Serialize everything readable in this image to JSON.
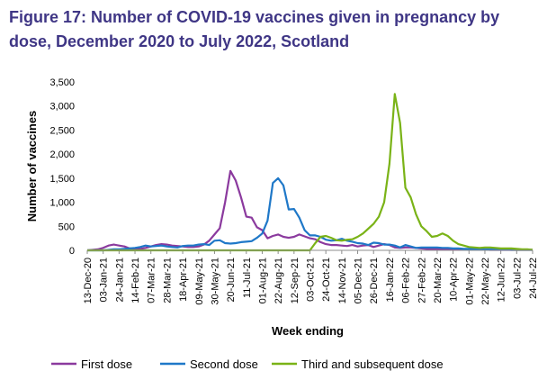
{
  "title": "Figure 17: Number of COVID-19 vaccines given in pregnancy by dose, December 2020 to July 2022, Scotland",
  "chart_data": {
    "type": "line",
    "title": "Figure 17: Number of COVID-19 vaccines given in pregnancy by dose, December 2020 to July 2022, Scotland",
    "xlabel": "Week ending",
    "ylabel": "Number of vaccines",
    "ylim": [
      0,
      3500
    ],
    "yticks": [
      0,
      500,
      1000,
      1500,
      2000,
      2500,
      3000,
      3500
    ],
    "ytick_labels": [
      "0",
      "500",
      "1,000",
      "1,500",
      "2,000",
      "2,500",
      "3,000",
      "3,500"
    ],
    "x_tick_labels": [
      "13-Dec-20",
      "03-Jan-21",
      "24-Jan-21",
      "14-Feb-21",
      "07-Mar-21",
      "28-Mar-21",
      "18-Apr-21",
      "09-May-21",
      "30-May-21",
      "20-Jun-21",
      "11-Jul-21",
      "01-Aug-21",
      "22-Aug-21",
      "12-Sep-21",
      "03-Oct-21",
      "24-Oct-21",
      "14-Nov-21",
      "05-Dec-21",
      "26-Dec-21",
      "16-Jan-22",
      "06-Feb-22",
      "27-Feb-22",
      "20-Mar-22",
      "10-Apr-22",
      "01-May-22",
      "22-May-22",
      "12-Jun-22",
      "03-Jul-22",
      "24-Jul-22"
    ],
    "week_count": 85,
    "grid": false,
    "legend_position": "bottom",
    "series": [
      {
        "name": "First dose",
        "color": "#8b3a9e",
        "values": [
          0,
          10,
          20,
          50,
          100,
          120,
          100,
          80,
          40,
          30,
          30,
          50,
          80,
          110,
          130,
          120,
          100,
          90,
          80,
          70,
          70,
          80,
          120,
          200,
          330,
          460,
          1000,
          1650,
          1450,
          1100,
          700,
          680,
          480,
          420,
          250,
          300,
          330,
          280,
          260,
          280,
          330,
          290,
          250,
          230,
          170,
          130,
          110,
          110,
          100,
          90,
          110,
          80,
          100,
          110,
          70,
          100,
          130,
          110,
          60,
          50,
          60,
          60,
          50,
          40,
          30,
          30,
          30,
          25,
          20,
          20,
          20,
          20,
          20,
          15,
          15,
          15,
          10,
          10,
          10,
          10,
          10,
          10,
          10,
          10,
          10
        ]
      },
      {
        "name": "Second dose",
        "color": "#1f78c8",
        "values": [
          0,
          0,
          0,
          0,
          10,
          20,
          20,
          30,
          40,
          50,
          70,
          100,
          80,
          90,
          100,
          80,
          70,
          60,
          90,
          100,
          100,
          120,
          130,
          110,
          200,
          210,
          150,
          140,
          150,
          170,
          180,
          190,
          260,
          350,
          620,
          1400,
          1500,
          1350,
          850,
          860,
          680,
          420,
          310,
          310,
          280,
          220,
          200,
          210,
          240,
          200,
          180,
          150,
          140,
          110,
          160,
          150,
          120,
          120,
          100,
          60,
          110,
          80,
          50,
          60,
          60,
          60,
          60,
          50,
          50,
          40,
          40,
          30,
          30,
          30,
          25,
          20,
          20,
          20,
          15,
          15,
          10,
          10,
          10,
          10,
          10
        ]
      },
      {
        "name": "Third and subsequent dose",
        "color": "#7ab317",
        "values": [
          0,
          0,
          0,
          0,
          0,
          0,
          0,
          0,
          0,
          0,
          0,
          0,
          0,
          0,
          0,
          0,
          0,
          0,
          0,
          0,
          0,
          0,
          0,
          0,
          0,
          0,
          0,
          0,
          0,
          0,
          0,
          0,
          0,
          0,
          0,
          0,
          0,
          0,
          0,
          0,
          0,
          0,
          0,
          150,
          280,
          300,
          260,
          210,
          200,
          220,
          230,
          280,
          350,
          450,
          550,
          700,
          1000,
          1800,
          3250,
          2650,
          1300,
          1100,
          750,
          500,
          400,
          280,
          300,
          350,
          300,
          200,
          130,
          100,
          70,
          60,
          50,
          60,
          60,
          50,
          40,
          40,
          40,
          30,
          20,
          20,
          10
        ]
      }
    ]
  }
}
